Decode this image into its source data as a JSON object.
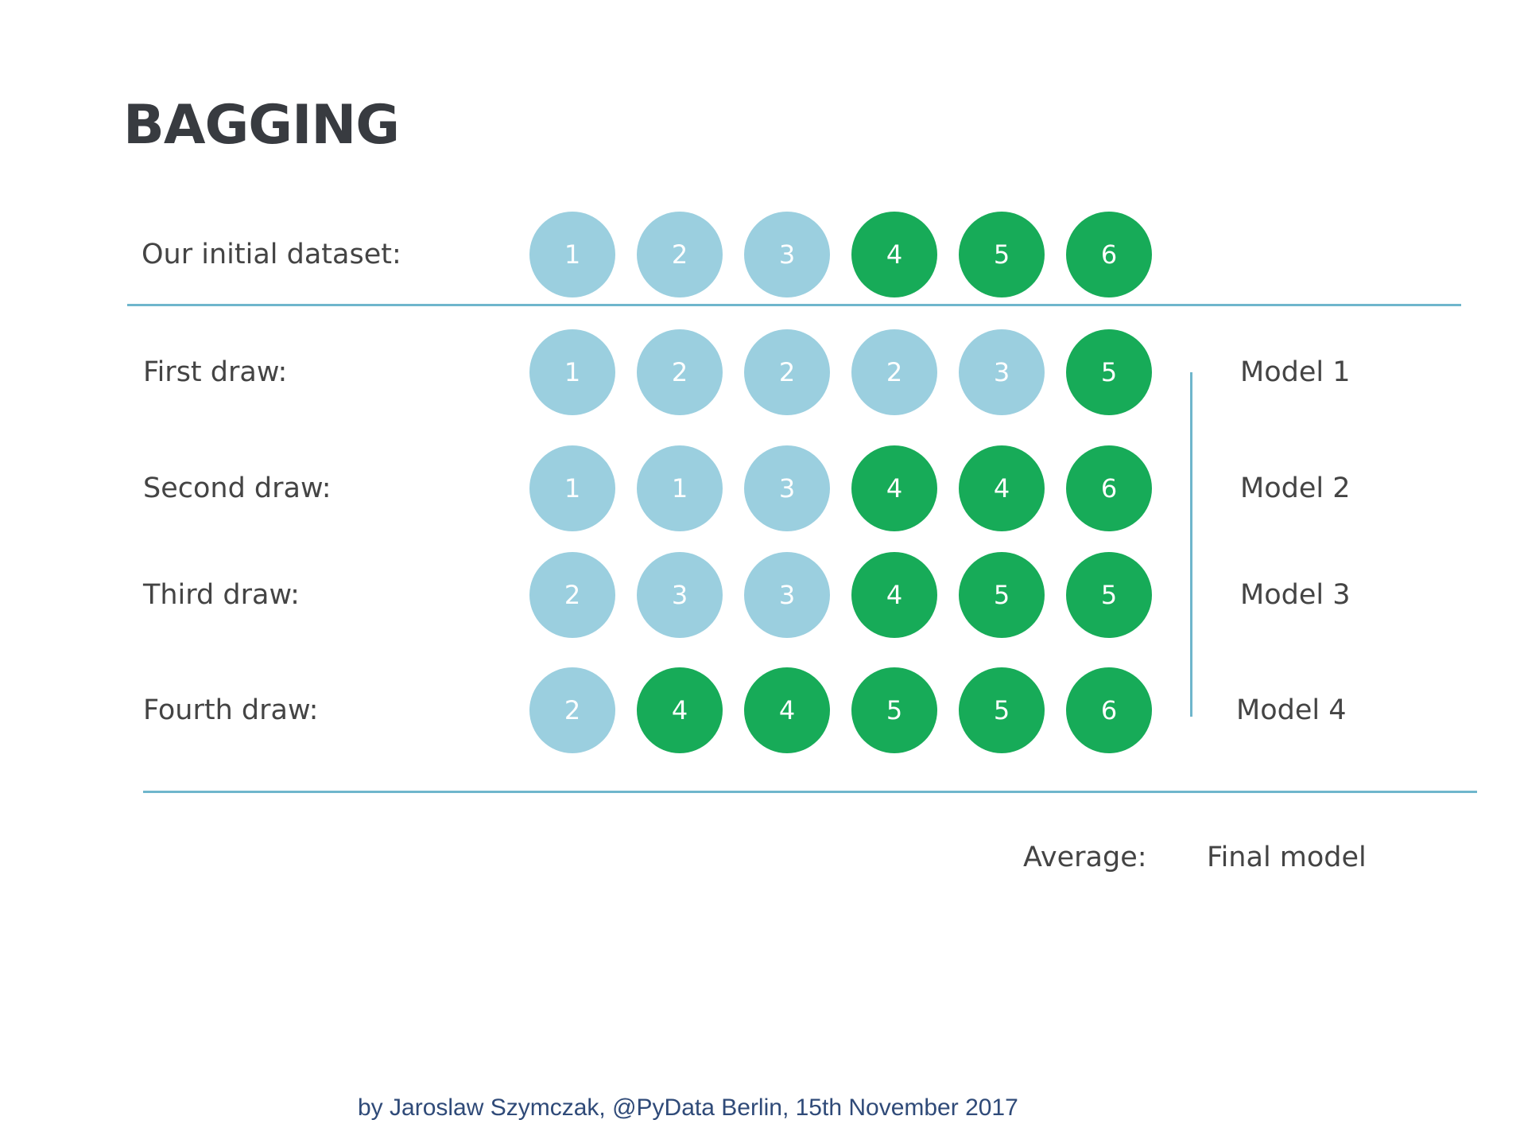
{
  "title": "BAGGING",
  "rows": [
    {
      "label": "Our initial dataset:",
      "balls": [
        {
          "n": "1",
          "c": "light"
        },
        {
          "n": "2",
          "c": "light"
        },
        {
          "n": "3",
          "c": "light"
        },
        {
          "n": "4",
          "c": "dark"
        },
        {
          "n": "5",
          "c": "dark"
        },
        {
          "n": "6",
          "c": "dark"
        }
      ]
    },
    {
      "label": "First draw:",
      "model": "Model 1",
      "balls": [
        {
          "n": "1",
          "c": "light"
        },
        {
          "n": "2",
          "c": "light"
        },
        {
          "n": "2",
          "c": "light"
        },
        {
          "n": "2",
          "c": "light"
        },
        {
          "n": "3",
          "c": "light"
        },
        {
          "n": "5",
          "c": "dark"
        }
      ]
    },
    {
      "label": "Second draw:",
      "model": "Model 2",
      "balls": [
        {
          "n": "1",
          "c": "light"
        },
        {
          "n": "1",
          "c": "light"
        },
        {
          "n": "3",
          "c": "light"
        },
        {
          "n": "4",
          "c": "dark"
        },
        {
          "n": "4",
          "c": "dark"
        },
        {
          "n": "6",
          "c": "dark"
        }
      ]
    },
    {
      "label": "Third draw:",
      "model": "Model 3",
      "balls": [
        {
          "n": "2",
          "c": "light"
        },
        {
          "n": "3",
          "c": "light"
        },
        {
          "n": "3",
          "c": "light"
        },
        {
          "n": "4",
          "c": "dark"
        },
        {
          "n": "5",
          "c": "dark"
        },
        {
          "n": "5",
          "c": "dark"
        }
      ]
    },
    {
      "label": "Fourth draw:",
      "model": "Model 4",
      "balls": [
        {
          "n": "2",
          "c": "light"
        },
        {
          "n": "4",
          "c": "dark"
        },
        {
          "n": "4",
          "c": "dark"
        },
        {
          "n": "5",
          "c": "dark"
        },
        {
          "n": "5",
          "c": "dark"
        },
        {
          "n": "6",
          "c": "dark"
        }
      ]
    }
  ],
  "average_label": "Average:",
  "final_label": "Final model",
  "footer": "by Jaroslaw Szymczak, @PyData Berlin, 15th November 2017",
  "colors": {
    "light": "#9bcfdf",
    "dark": "#17ab58",
    "line": "#6fb6cc"
  }
}
